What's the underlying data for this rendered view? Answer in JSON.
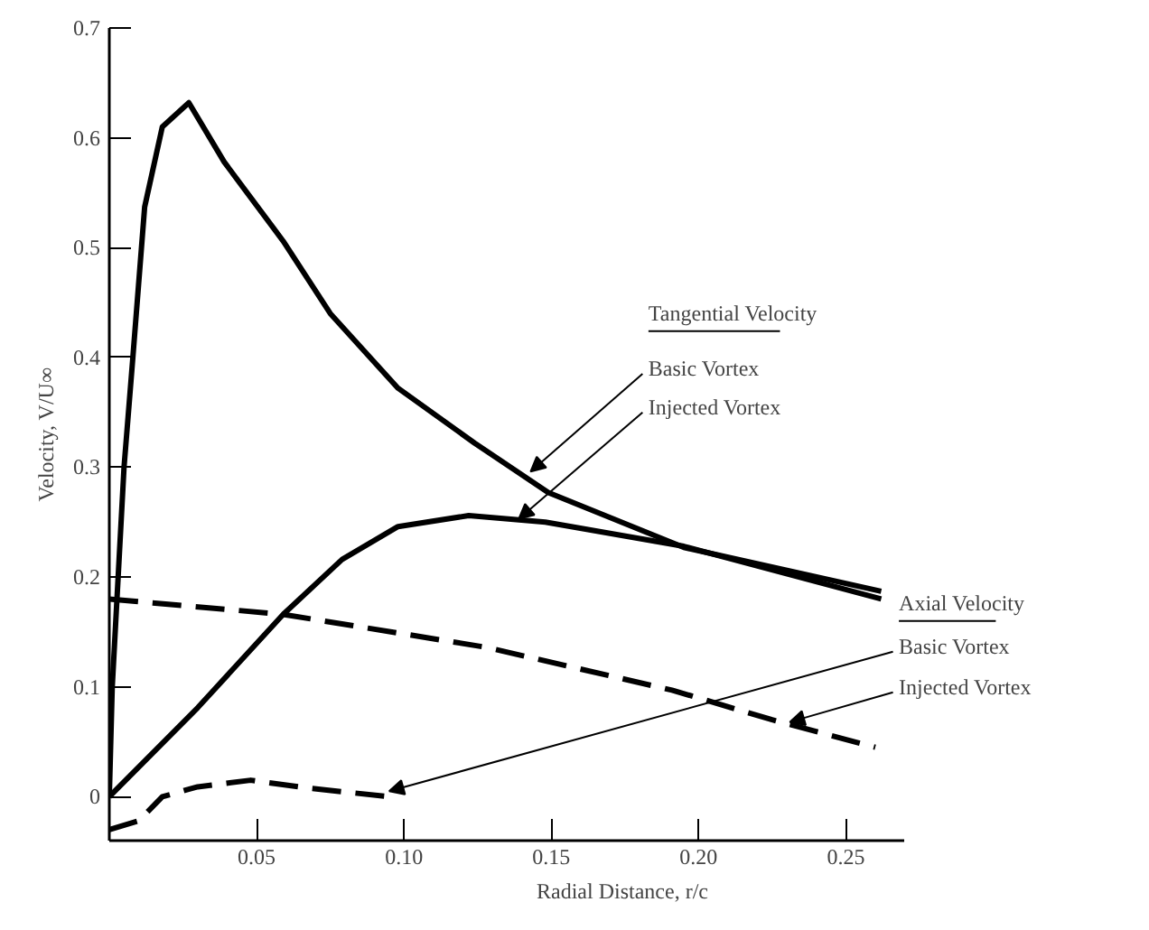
{
  "chart_data": {
    "type": "line",
    "xlabel": "Radial Distance, r/c",
    "ylabel": "Velocity, V/U∞",
    "xlim": [
      0,
      0.27
    ],
    "ylim": [
      -0.04,
      0.7
    ],
    "xticks": [
      0.05,
      {
        "value": 0.1,
        "label": "0.10"
      },
      0.15,
      {
        "value": 0.2,
        "label": "0.20"
      },
      0.25
    ],
    "yticks": [
      0,
      0.1,
      0.2,
      0.3,
      0.4,
      0.5,
      0.6,
      0.7
    ],
    "grid": false,
    "marker": "none",
    "series": [
      {
        "color": "#000000",
        "line_style": "solid",
        "x": [
          0,
          0.001,
          0.005,
          0.008,
          0.012,
          0.018,
          0.027,
          0.039,
          0.059,
          0.075,
          0.098,
          0.124,
          0.149,
          0.195,
          0.262
        ],
        "values": [
          0,
          0.1,
          0.3,
          0.4,
          0.537,
          0.61,
          0.632,
          0.578,
          0.506,
          0.44,
          0.372,
          0.322,
          0.277,
          0.227,
          0.187
        ]
      },
      {
        "color": "#000000",
        "line_style": "solid",
        "x": [
          0,
          0.03,
          0.059,
          0.079,
          0.098,
          0.122,
          0.148,
          0.195,
          0.262
        ],
        "values": [
          0,
          0.081,
          0.166,
          0.216,
          0.246,
          0.256,
          0.25,
          0.228,
          0.18
        ]
      },
      {
        "color": "#000000",
        "line_style": "dashed",
        "x": [
          0,
          0.01,
          0.018,
          0.03,
          0.048,
          0.067,
          0.095
        ],
        "values": [
          -0.03,
          -0.022,
          0,
          0.009,
          0.015,
          0.008,
          0
        ]
      },
      {
        "color": "#000000",
        "line_style": "dashed",
        "x": [
          0,
          0.059,
          0.128,
          0.191,
          0.225,
          0.26
        ],
        "values": [
          0.18,
          0.166,
          0.136,
          0.097,
          0.07,
          0.045
        ]
      }
    ],
    "annotations": [
      "Tangential Velocity",
      {
        "text": "Basic Vortex",
        "x": 0.143,
        "y": 0.296
      },
      {
        "text": "Injected Vortex",
        "x": 0.139,
        "y": 0.253
      },
      "Axial Velocity",
      {
        "text": "Basic Vortex",
        "x": 0.095,
        "y": 0.005
      },
      {
        "text": "Injected Vortex",
        "x": 0.231,
        "y": 0.068
      }
    ]
  }
}
